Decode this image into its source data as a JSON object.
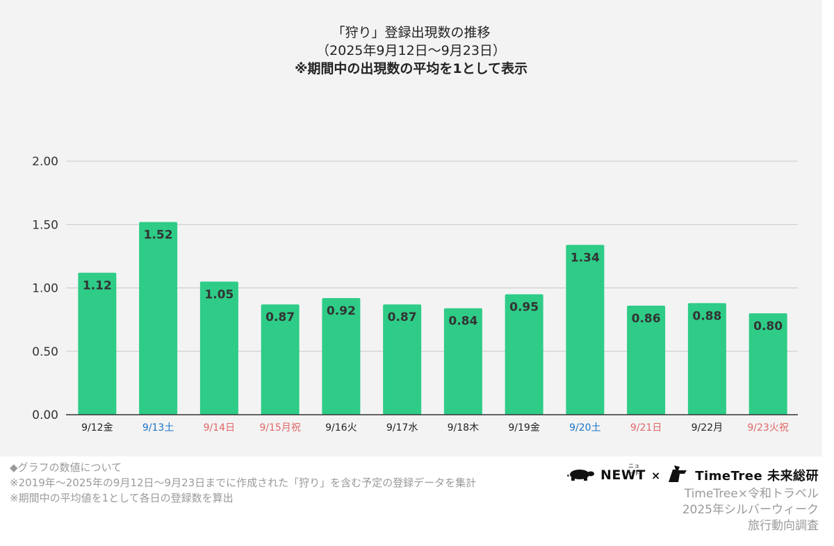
{
  "title": {
    "line1": "「狩り」登録出現数の推移",
    "line2": "（2025年9月12日〜9月23日）",
    "line3": "※期間中の出現数の平均を1として表示"
  },
  "chart_data": {
    "type": "bar",
    "categories": [
      "9/12金",
      "9/13土",
      "9/14日",
      "9/15月祝",
      "9/16火",
      "9/17水",
      "9/18木",
      "9/19金",
      "9/20土",
      "9/21日",
      "9/22月",
      "9/23火祝"
    ],
    "category_colors": [
      "#222222",
      "#1a73c9",
      "#e06666",
      "#e06666",
      "#222222",
      "#222222",
      "#222222",
      "#222222",
      "#1a73c9",
      "#e06666",
      "#222222",
      "#e06666"
    ],
    "values": [
      1.12,
      1.52,
      1.05,
      0.87,
      0.92,
      0.87,
      0.84,
      0.95,
      1.34,
      0.86,
      0.88,
      0.8
    ],
    "data_labels": [
      "1.12",
      "1.52",
      "1.05",
      "0.87",
      "0.92",
      "0.87",
      "0.84",
      "0.95",
      "1.34",
      "0.86",
      "0.88",
      "0.80"
    ],
    "y_ticks": [
      "0.00",
      "0.50",
      "1.00",
      "1.50",
      "2.00"
    ],
    "ylim": [
      0,
      2
    ],
    "grid": true,
    "bar_color": "#2ecc87",
    "xlabel": "",
    "ylabel": ""
  },
  "notes": {
    "line1": "◆グラフの数値について",
    "line2": "※2019年〜2025年の9月12日〜9月23日までに作成された「狩り」を含む予定の登録データを集計",
    "line3": "※期間中の平均値を1として各日の登録数を算出"
  },
  "logos": {
    "newt": "NEWT",
    "newt_ruby": "ニュート",
    "cross": "×",
    "timetree": "TimeTree 未来総研"
  },
  "credit": {
    "line1": "TimeTree×令和トラベル",
    "line2": "2025年シルバーウィーク",
    "line3": "旅行動向調査"
  }
}
